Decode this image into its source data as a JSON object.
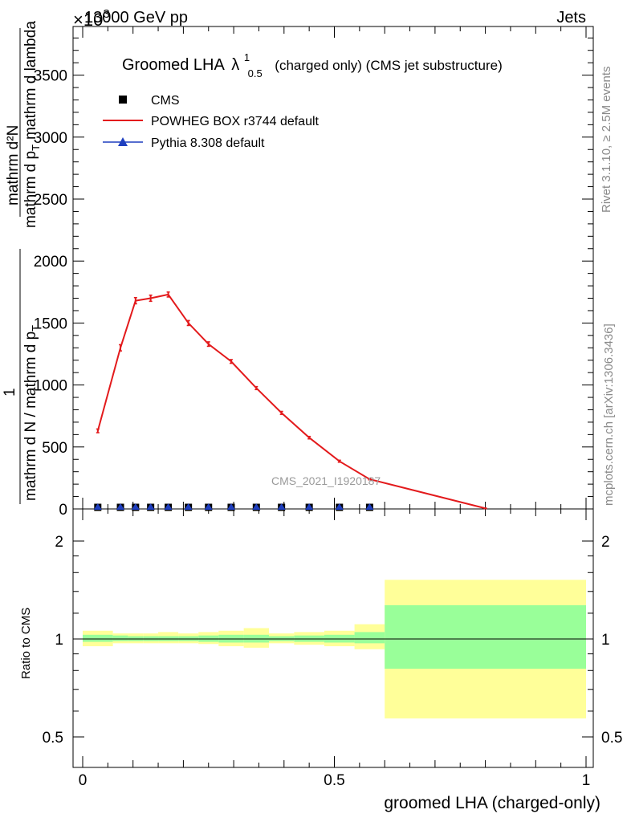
{
  "header": {
    "energy": "13000 GeV pp",
    "exponent": "×10",
    "exponent_power": "3",
    "process": "Jets"
  },
  "title": {
    "main": "Groomed LHA",
    "lambda": "λ",
    "sup": "1",
    "sub": "0.5",
    "rest": "(charged only) (CMS jet substructure)"
  },
  "legend": {
    "cms": "CMS",
    "powheg": "POWHEG BOX r3744 default",
    "pythia": "Pythia 8.308 default"
  },
  "side_labels": {
    "rivet": "Rivet 3.1.10, ≥ 2.5M events",
    "mcplots": "mcplots.cern.ch [arXiv:1306.3436]"
  },
  "watermark": "CMS_2021_I1920187",
  "ylabel_main": {
    "one": "1",
    "num": "mathrm d N",
    "den": "mathrm d N / mathrm d p",
    "num2": "mathrm d²N",
    "den2": "mathrm d p",
    "sub_T": "T",
    "den2b": "mathrm d lambda"
  },
  "ratio_ylabel": "Ratio to CMS",
  "xlabel": "groomed LHA (charged-only)",
  "main_yticks": [
    "0",
    "500",
    "1000",
    "1500",
    "2000",
    "2500",
    "3000",
    "3500"
  ],
  "ratio_yticks": [
    "0.5",
    "1",
    "2"
  ],
  "xticks": [
    "0",
    "0.5",
    "1"
  ],
  "colors": {
    "powheg": "#e31a1c",
    "pythia": "#1f3fbf",
    "band_outer": "#ffff99",
    "band_inner": "#99ff99"
  },
  "chart_data": [
    {
      "type": "line",
      "xlim": [
        0,
        1
      ],
      "ylim": [
        0,
        3900
      ],
      "y_scale_factor": 1000,
      "series": [
        {
          "name": "CMS",
          "x": [
            0.03,
            0.075,
            0.105,
            0.135,
            0.17,
            0.21,
            0.25,
            0.295,
            0.345,
            0.395,
            0.45,
            0.51,
            0.57
          ],
          "y": [
            0,
            0,
            0,
            0,
            0,
            0,
            0,
            0,
            0,
            0,
            0,
            0,
            0
          ]
        },
        {
          "name": "POWHEG BOX r3744 default",
          "x": [
            0.03,
            0.075,
            0.105,
            0.135,
            0.17,
            0.21,
            0.25,
            0.295,
            0.345,
            0.395,
            0.45,
            0.51,
            0.57,
            0.8
          ],
          "y": [
            630,
            1300,
            1680,
            1700,
            1730,
            1500,
            1330,
            1190,
            975,
            775,
            575,
            385,
            240,
            5
          ],
          "err": [
            15,
            25,
            25,
            25,
            20,
            20,
            18,
            15,
            12,
            12,
            10,
            8,
            5,
            2
          ]
        },
        {
          "name": "Pythia 8.308 default",
          "x": [
            0.03,
            0.075,
            0.105,
            0.135,
            0.17,
            0.21,
            0.25,
            0.295,
            0.345,
            0.395,
            0.45,
            0.51,
            0.57
          ],
          "y": [
            0,
            0,
            0,
            0,
            0,
            0,
            0,
            0,
            0,
            0,
            0,
            0,
            0
          ]
        }
      ]
    },
    {
      "type": "area",
      "ylabel": "Ratio to CMS",
      "ylim": [
        0.4,
        2.4
      ],
      "log_scale": true,
      "bands": [
        {
          "x0": 0.0,
          "x1": 0.06,
          "inner": [
            0.98,
            1.03
          ],
          "outer": [
            0.95,
            1.06
          ]
        },
        {
          "x0": 0.06,
          "x1": 0.09,
          "inner": [
            0.985,
            1.025
          ],
          "outer": [
            0.97,
            1.04
          ]
        },
        {
          "x0": 0.09,
          "x1": 0.12,
          "inner": [
            0.985,
            1.02
          ],
          "outer": [
            0.97,
            1.04
          ]
        },
        {
          "x0": 0.12,
          "x1": 0.15,
          "inner": [
            0.985,
            1.02
          ],
          "outer": [
            0.97,
            1.04
          ]
        },
        {
          "x0": 0.15,
          "x1": 0.19,
          "inner": [
            0.985,
            1.02
          ],
          "outer": [
            0.97,
            1.05
          ]
        },
        {
          "x0": 0.19,
          "x1": 0.23,
          "inner": [
            0.985,
            1.02
          ],
          "outer": [
            0.97,
            1.04
          ]
        },
        {
          "x0": 0.23,
          "x1": 0.27,
          "inner": [
            0.98,
            1.025
          ],
          "outer": [
            0.965,
            1.05
          ]
        },
        {
          "x0": 0.27,
          "x1": 0.32,
          "inner": [
            0.975,
            1.03
          ],
          "outer": [
            0.95,
            1.06
          ]
        },
        {
          "x0": 0.32,
          "x1": 0.37,
          "inner": [
            0.975,
            1.03
          ],
          "outer": [
            0.94,
            1.08
          ]
        },
        {
          "x0": 0.37,
          "x1": 0.42,
          "inner": [
            0.985,
            1.02
          ],
          "outer": [
            0.97,
            1.04
          ]
        },
        {
          "x0": 0.42,
          "x1": 0.48,
          "inner": [
            0.98,
            1.025
          ],
          "outer": [
            0.96,
            1.05
          ]
        },
        {
          "x0": 0.48,
          "x1": 0.54,
          "inner": [
            0.975,
            1.03
          ],
          "outer": [
            0.95,
            1.06
          ]
        },
        {
          "x0": 0.54,
          "x1": 0.6,
          "inner": [
            0.97,
            1.05
          ],
          "outer": [
            0.93,
            1.11
          ]
        },
        {
          "x0": 0.6,
          "x1": 1.0,
          "inner": [
            0.81,
            1.27
          ],
          "outer": [
            0.57,
            1.52
          ]
        }
      ],
      "reference": 1
    }
  ]
}
